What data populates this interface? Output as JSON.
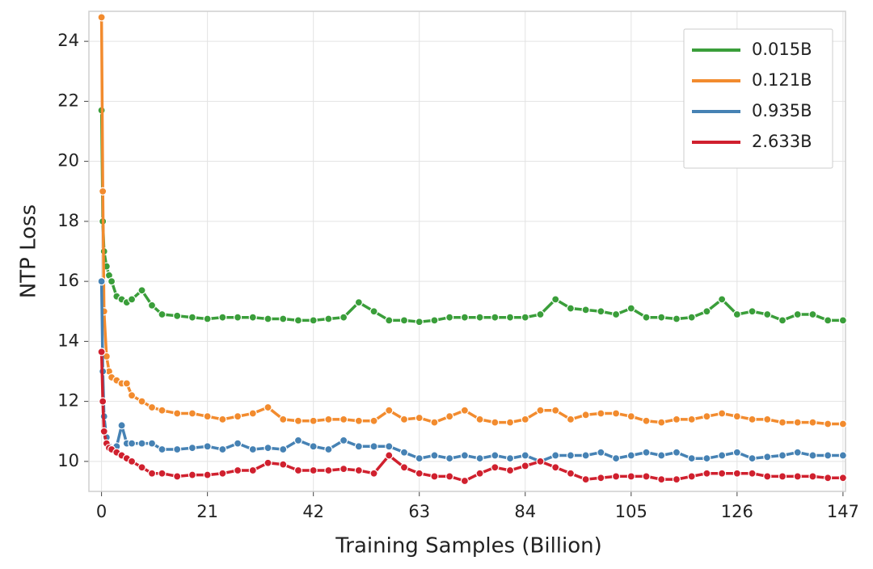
{
  "chart_data": {
    "type": "line",
    "x_label": "Training Samples (Billion)",
    "y_label": "NTP Loss",
    "x": [
      0,
      0.25,
      0.5,
      1,
      1.5,
      2,
      3,
      4,
      5,
      6,
      8,
      10,
      12,
      15,
      18,
      21,
      24,
      27,
      30,
      33,
      36,
      39,
      42,
      45,
      48,
      51,
      54,
      57,
      60,
      63,
      66,
      69,
      72,
      75,
      78,
      81,
      84,
      87,
      90,
      93,
      96,
      99,
      102,
      105,
      108,
      111,
      114,
      117,
      120,
      123,
      126,
      129,
      132,
      135,
      138,
      141,
      144,
      147
    ],
    "series": [
      {
        "name": "0.015B",
        "color": "#3a9e3a",
        "values": [
          21.7,
          18,
          17,
          16.5,
          16.2,
          16,
          15.5,
          15.4,
          15.3,
          15.4,
          15.7,
          15.2,
          14.9,
          14.85,
          14.8,
          14.75,
          14.8,
          14.8,
          14.8,
          14.75,
          14.75,
          14.7,
          14.7,
          14.75,
          14.8,
          15.3,
          15.0,
          14.7,
          14.7,
          14.65,
          14.7,
          14.8,
          14.8,
          14.8,
          14.8,
          14.8,
          14.8,
          14.9,
          15.4,
          15.1,
          15.05,
          15.0,
          14.9,
          15.1,
          14.8,
          14.8,
          14.75,
          14.8,
          15.0,
          15.4,
          14.9,
          15.0,
          14.9,
          14.7,
          14.9,
          14.9,
          14.7,
          14.7
        ]
      },
      {
        "name": "0.121B",
        "color": "#f28b2e",
        "values": [
          24.8,
          19,
          15,
          13.5,
          13.0,
          12.8,
          12.7,
          12.6,
          12.6,
          12.2,
          12.0,
          11.8,
          11.7,
          11.6,
          11.6,
          11.5,
          11.4,
          11.5,
          11.6,
          11.8,
          11.4,
          11.35,
          11.35,
          11.4,
          11.4,
          11.35,
          11.35,
          11.7,
          11.4,
          11.45,
          11.3,
          11.5,
          11.7,
          11.4,
          11.3,
          11.3,
          11.4,
          11.7,
          11.7,
          11.4,
          11.55,
          11.6,
          11.6,
          11.5,
          11.35,
          11.3,
          11.4,
          11.4,
          11.5,
          11.6,
          11.5,
          11.4,
          11.4,
          11.3,
          11.3,
          11.3,
          11.25,
          11.25
        ]
      },
      {
        "name": "0.935B",
        "color": "#4682b4",
        "values": [
          16,
          13,
          11.5,
          10.8,
          10.5,
          10.4,
          10.5,
          11.2,
          10.6,
          10.6,
          10.6,
          10.6,
          10.4,
          10.4,
          10.45,
          10.5,
          10.4,
          10.6,
          10.4,
          10.45,
          10.4,
          10.7,
          10.5,
          10.4,
          10.7,
          10.5,
          10.5,
          10.5,
          10.3,
          10.1,
          10.2,
          10.1,
          10.2,
          10.1,
          10.2,
          10.1,
          10.2,
          10.0,
          10.2,
          10.2,
          10.2,
          10.3,
          10.1,
          10.2,
          10.3,
          10.2,
          10.3,
          10.1,
          10.1,
          10.2,
          10.3,
          10.1,
          10.15,
          10.2,
          10.3,
          10.2,
          10.2,
          10.2
        ]
      },
      {
        "name": "2.633B",
        "color": "#d0202e",
        "values": [
          13.65,
          12,
          11,
          10.6,
          10.45,
          10.4,
          10.3,
          10.2,
          10.1,
          10.0,
          9.8,
          9.6,
          9.6,
          9.5,
          9.55,
          9.55,
          9.6,
          9.7,
          9.7,
          9.95,
          9.9,
          9.7,
          9.7,
          9.7,
          9.75,
          9.7,
          9.6,
          10.2,
          9.8,
          9.6,
          9.5,
          9.5,
          9.35,
          9.6,
          9.8,
          9.7,
          9.85,
          10.0,
          9.8,
          9.6,
          9.4,
          9.45,
          9.5,
          9.5,
          9.5,
          9.4,
          9.4,
          9.5,
          9.6,
          9.6,
          9.6,
          9.6,
          9.5,
          9.5,
          9.5,
          9.5,
          9.45,
          9.45
        ]
      }
    ],
    "xlim": [
      -2.5,
      147.5
    ],
    "ylim": [
      9,
      25
    ],
    "xticks": [
      0,
      21,
      42,
      63,
      84,
      105,
      126,
      147
    ],
    "yticks": [
      10,
      12,
      14,
      16,
      18,
      20,
      22,
      24
    ],
    "grid": true,
    "legend": "upper right"
  }
}
